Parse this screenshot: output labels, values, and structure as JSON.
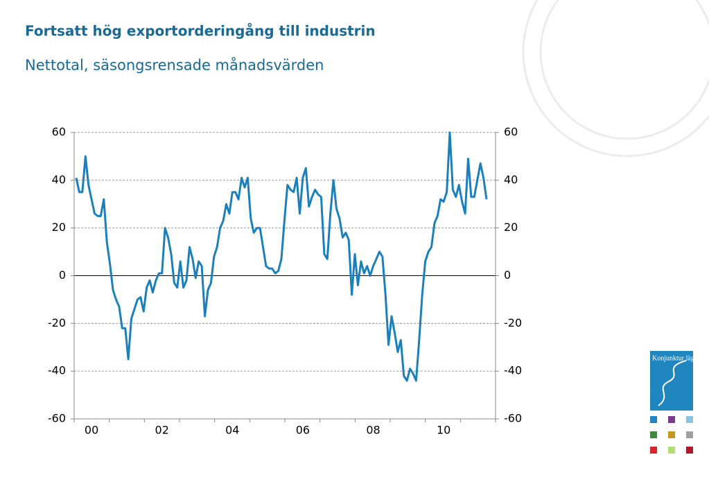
{
  "chart_data": {
    "type": "line",
    "title": "Fortsatt hög exportorderingång till industrin",
    "subtitle": "Nettotal, säsongsrensade månadsvärden",
    "categories": [
      null,
      null,
      null,
      null,
      null,
      "00",
      null,
      null,
      null,
      null,
      null,
      null,
      null,
      null,
      null,
      null,
      null,
      null,
      null,
      null,
      null,
      null,
      null,
      null,
      null,
      null,
      null,
      null,
      "02",
      null,
      null,
      null,
      null,
      null,
      null,
      null,
      null,
      null,
      null,
      null,
      null,
      null,
      null,
      null,
      null,
      null,
      null,
      null,
      null,
      null,
      null,
      "04",
      null,
      null,
      null,
      null,
      null,
      null,
      null,
      null,
      null,
      null,
      null,
      null,
      null,
      null,
      null,
      null,
      null,
      null,
      null,
      null,
      null,
      null,
      "06",
      null,
      null,
      null,
      null,
      null,
      null,
      null,
      null,
      null,
      null,
      null,
      null,
      null,
      null,
      null,
      null,
      null,
      null,
      null,
      null,
      null,
      null,
      "08",
      null,
      null,
      null,
      null,
      null,
      null,
      null,
      null,
      null,
      null,
      null,
      null,
      null,
      null,
      null,
      null,
      null,
      null,
      null,
      null,
      null,
      null,
      "10",
      null,
      null,
      null,
      null,
      null,
      null,
      null,
      null,
      null,
      null,
      null,
      null,
      null,
      null
    ],
    "series": [
      {
        "color": "#1a80bb",
        "values": [
          41,
          35,
          35,
          50,
          38,
          32,
          26,
          25,
          25,
          32,
          14,
          5,
          -6,
          -10,
          -13,
          -22,
          -22,
          -35,
          -18,
          -14,
          -10,
          -9,
          -15,
          -5,
          -2,
          -7,
          -2,
          1,
          1,
          20,
          16,
          9,
          -3,
          -5,
          6,
          -5,
          -2,
          12,
          7,
          -1,
          6,
          4,
          -17,
          -6,
          -3,
          8,
          12,
          20,
          23,
          30,
          26,
          35,
          35,
          32,
          41,
          37,
          41,
          24,
          18,
          20,
          20,
          12,
          4,
          3,
          3,
          1,
          2,
          7,
          23,
          38,
          36,
          35,
          41,
          26,
          41,
          45,
          29,
          33,
          36,
          34,
          33,
          9,
          7,
          26,
          40,
          28,
          24,
          16,
          18,
          15,
          -8,
          9,
          -4,
          6,
          1,
          4,
          0,
          4,
          7,
          10,
          8,
          -8,
          -29,
          -17,
          -24,
          -32,
          -27,
          -42,
          -44,
          -39,
          -41,
          -44,
          -27,
          -8,
          6,
          10,
          12,
          22,
          25,
          32,
          31,
          35,
          60,
          36,
          33,
          38,
          31,
          26,
          49,
          33,
          33,
          40,
          47,
          41,
          32
        ]
      }
    ],
    "ylim": [
      -60,
      60
    ],
    "yticks": [
      -60,
      -40,
      -20,
      0,
      20,
      40,
      60
    ],
    "y2lim": [
      -60,
      60
    ],
    "y2ticks": [
      -60,
      -40,
      -20,
      0,
      20,
      40,
      60
    ],
    "grid": true,
    "logo_text": "Konjunktur läget"
  }
}
